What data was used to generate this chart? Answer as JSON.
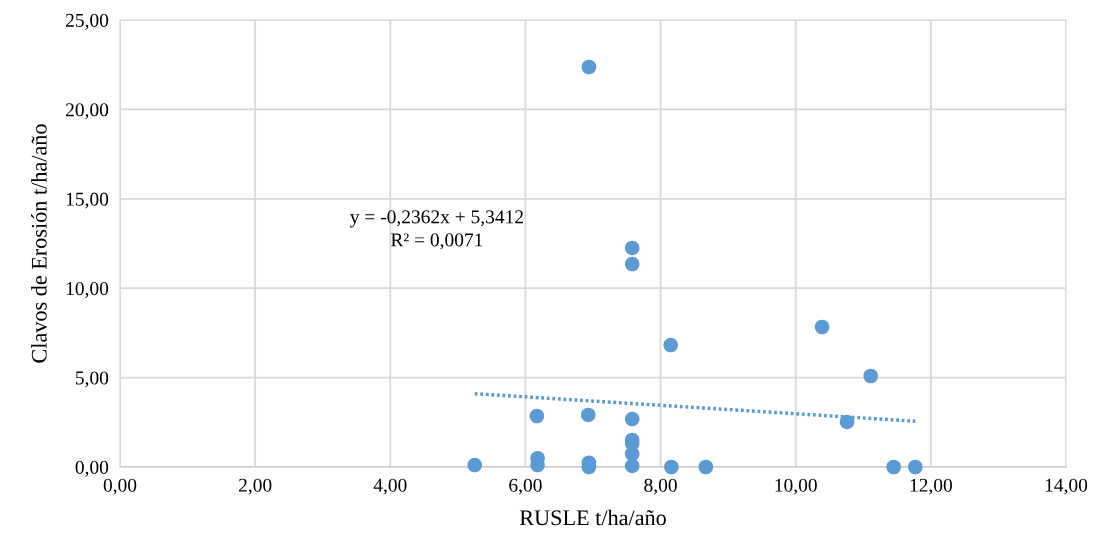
{
  "chart_data": {
    "type": "scatter",
    "xlabel": "RUSLE t/ha/año",
    "ylabel": "Clavos de Erosión t/ha/año",
    "xlim": [
      0,
      14
    ],
    "ylim": [
      0,
      25
    ],
    "xticks": [
      {
        "value": 0,
        "label": "0,00"
      },
      {
        "value": 2,
        "label": "2,00"
      },
      {
        "value": 4,
        "label": "4,00"
      },
      {
        "value": 6,
        "label": "6,00"
      },
      {
        "value": 8,
        "label": "8,00"
      },
      {
        "value": 10,
        "label": "10,00"
      },
      {
        "value": 12,
        "label": "12,00"
      },
      {
        "value": 14,
        "label": "14,00"
      }
    ],
    "yticks": [
      {
        "value": 0,
        "label": "0,00"
      },
      {
        "value": 5,
        "label": "5,00"
      },
      {
        "value": 10,
        "label": "10,00"
      },
      {
        "value": 15,
        "label": "15,00"
      },
      {
        "value": 20,
        "label": "20,00"
      },
      {
        "value": 25,
        "label": "25,00"
      }
    ],
    "grid": true,
    "legend": false,
    "series": [
      {
        "color": "#5b9bd5",
        "marker": "circle",
        "x": [
          6.94,
          7.58,
          7.58,
          8.15,
          10.39,
          11.11,
          10.76,
          6.17,
          6.93,
          7.58,
          5.25,
          6.18,
          6.18,
          6.94,
          6.94,
          7.58,
          7.58,
          7.58,
          7.58,
          8.16,
          8.67,
          11.45,
          11.77
        ],
        "values": [
          22.37,
          12.25,
          11.35,
          6.82,
          7.83,
          5.09,
          2.52,
          2.85,
          2.91,
          2.68,
          0.11,
          0.49,
          0.11,
          0.24,
          0.0,
          1.51,
          1.32,
          0.73,
          0.06,
          0.0,
          0.0,
          0.0,
          0.0
        ]
      },
      {
        "type": "line",
        "color": "#5b9bd5",
        "marker": "none",
        "line_style": "dotted",
        "x": [
          5.25,
          11.77
        ],
        "values": [
          4.1,
          2.56
        ]
      }
    ],
    "annotations": [
      "y = -0,2362x + 5,3412\nR² = 0,0071"
    ]
  }
}
